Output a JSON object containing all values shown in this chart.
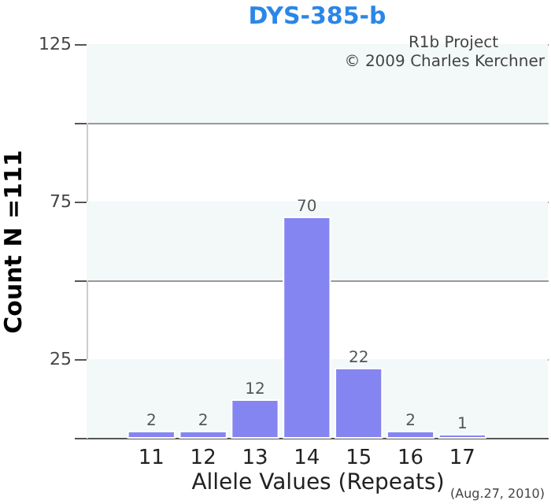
{
  "chart_data": {
    "type": "bar",
    "title": "DYS-385-b",
    "xlabel": "Allele Values (Repeats)",
    "ylabel": "Count N =111",
    "categories": [
      "11",
      "12",
      "13",
      "14",
      "15",
      "16",
      "17"
    ],
    "values": [
      2,
      2,
      12,
      70,
      22,
      2,
      1
    ],
    "color": "#8585f2",
    "data_labels": true,
    "ylim": [
      0,
      125
    ],
    "yticks": [
      {
        "value": 0,
        "label": null
      },
      25,
      {
        "value": 50,
        "label": null
      },
      75,
      {
        "value": 100,
        "label": null
      },
      125
    ],
    "grid": "y",
    "bands": [
      {
        "axis": "y",
        "from": 0,
        "to": 25,
        "color": "#f3f8f9"
      },
      {
        "axis": "y",
        "from": 50,
        "to": 75,
        "color": "#f3f8f9"
      },
      {
        "axis": "y",
        "from": 100,
        "to": 125,
        "color": "#f3f8f9"
      }
    ],
    "annotations": [
      "R1b Project",
      "© 2009 Charles Kerchner",
      "(Aug.27, 2010)"
    ]
  }
}
